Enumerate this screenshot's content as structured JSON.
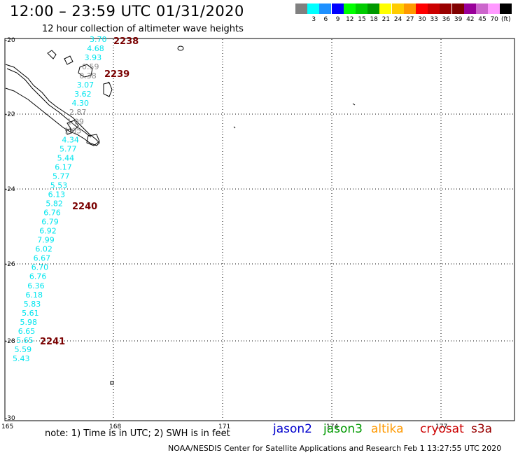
{
  "header": {
    "title": "12:00 – 23:59 UTC 01/31/2020",
    "subtitle": "12 hour collection of altimeter wave heights"
  },
  "scale": {
    "unit": "(ft)",
    "bins": [
      {
        "label": "",
        "color": "#808080"
      },
      {
        "label": "3",
        "color": "#00ffff"
      },
      {
        "label": "6",
        "color": "#1e90ff"
      },
      {
        "label": "9",
        "color": "#0000ff"
      },
      {
        "label": "12",
        "color": "#00ff00"
      },
      {
        "label": "15",
        "color": "#00cc00"
      },
      {
        "label": "18",
        "color": "#009900"
      },
      {
        "label": "21",
        "color": "#ffff00"
      },
      {
        "label": "24",
        "color": "#ffcc00"
      },
      {
        "label": "27",
        "color": "#ff9900"
      },
      {
        "label": "30",
        "color": "#ff0000"
      },
      {
        "label": "33",
        "color": "#cc0000"
      },
      {
        "label": "36",
        "color": "#990000"
      },
      {
        "label": "39",
        "color": "#800000"
      },
      {
        "label": "42",
        "color": "#990099"
      },
      {
        "label": "45",
        "color": "#cc66cc"
      },
      {
        "label": "70",
        "color": "#ff99ff"
      },
      {
        "label": "",
        "color": "#000000"
      }
    ]
  },
  "axes": {
    "lat_labels": [
      "-20",
      "-22",
      "-24",
      "-26",
      "-28",
      "-30"
    ],
    "lon_labels": [
      "165",
      "168",
      "171",
      "174",
      "177"
    ]
  },
  "track": {
    "color_cyan": "#00e5ee",
    "color_gray": "#8c8c8c",
    "time_color": "#7a0000",
    "times": [
      "2238",
      "2239",
      "2240",
      "2241"
    ],
    "values": [
      {
        "v": "3.70",
        "c": "cyan"
      },
      {
        "v": "4.68",
        "c": "cyan"
      },
      {
        "v": "3.93",
        "c": "cyan"
      },
      {
        "v": "0.59",
        "c": "gray"
      },
      {
        "v": "0.38",
        "c": "gray"
      },
      {
        "v": "3.07",
        "c": "cyan"
      },
      {
        "v": "3.62",
        "c": "cyan"
      },
      {
        "v": "4.30",
        "c": "cyan"
      },
      {
        "v": "2.87",
        "c": "gray"
      },
      {
        "v": "1.99",
        "c": "gray"
      },
      {
        "v": "1.05",
        "c": "gray"
      },
      {
        "v": "4.34",
        "c": "cyan"
      },
      {
        "v": "5.77",
        "c": "cyan"
      },
      {
        "v": "5.44",
        "c": "cyan"
      },
      {
        "v": "6.17",
        "c": "cyan"
      },
      {
        "v": "5.77",
        "c": "cyan"
      },
      {
        "v": "5.53",
        "c": "cyan"
      },
      {
        "v": "6.13",
        "c": "cyan"
      },
      {
        "v": "5.82",
        "c": "cyan"
      },
      {
        "v": "6.76",
        "c": "cyan"
      },
      {
        "v": "6.79",
        "c": "cyan"
      },
      {
        "v": "6.92",
        "c": "cyan"
      },
      {
        "v": "7.99",
        "c": "cyan"
      },
      {
        "v": "6.02",
        "c": "cyan"
      },
      {
        "v": "6.67",
        "c": "cyan"
      },
      {
        "v": "6.70",
        "c": "cyan"
      },
      {
        "v": "6.76",
        "c": "cyan"
      },
      {
        "v": "6.36",
        "c": "cyan"
      },
      {
        "v": "6.18",
        "c": "cyan"
      },
      {
        "v": "5.83",
        "c": "cyan"
      },
      {
        "v": "5.61",
        "c": "cyan"
      },
      {
        "v": "5.98",
        "c": "cyan"
      },
      {
        "v": "6.65",
        "c": "cyan"
      },
      {
        "v": "5.65",
        "c": "cyan"
      },
      {
        "v": "5.59",
        "c": "cyan"
      },
      {
        "v": "5.43",
        "c": "cyan"
      }
    ]
  },
  "footer": {
    "note": "note: 1) Time is in UTC; 2) SWH is in feet",
    "missions": [
      {
        "name": "jason2",
        "color": "#0000cc"
      },
      {
        "name": "jason3",
        "color": "#009900"
      },
      {
        "name": "altika",
        "color": "#ff9900"
      },
      {
        "name": "cryosat",
        "color": "#cc0000"
      },
      {
        "name": "s3a",
        "color": "#990000"
      }
    ],
    "credit": "NOAA/NESDIS Center for Satellite Applications and Research    Feb  1 13:27:55 UTC 2020"
  }
}
